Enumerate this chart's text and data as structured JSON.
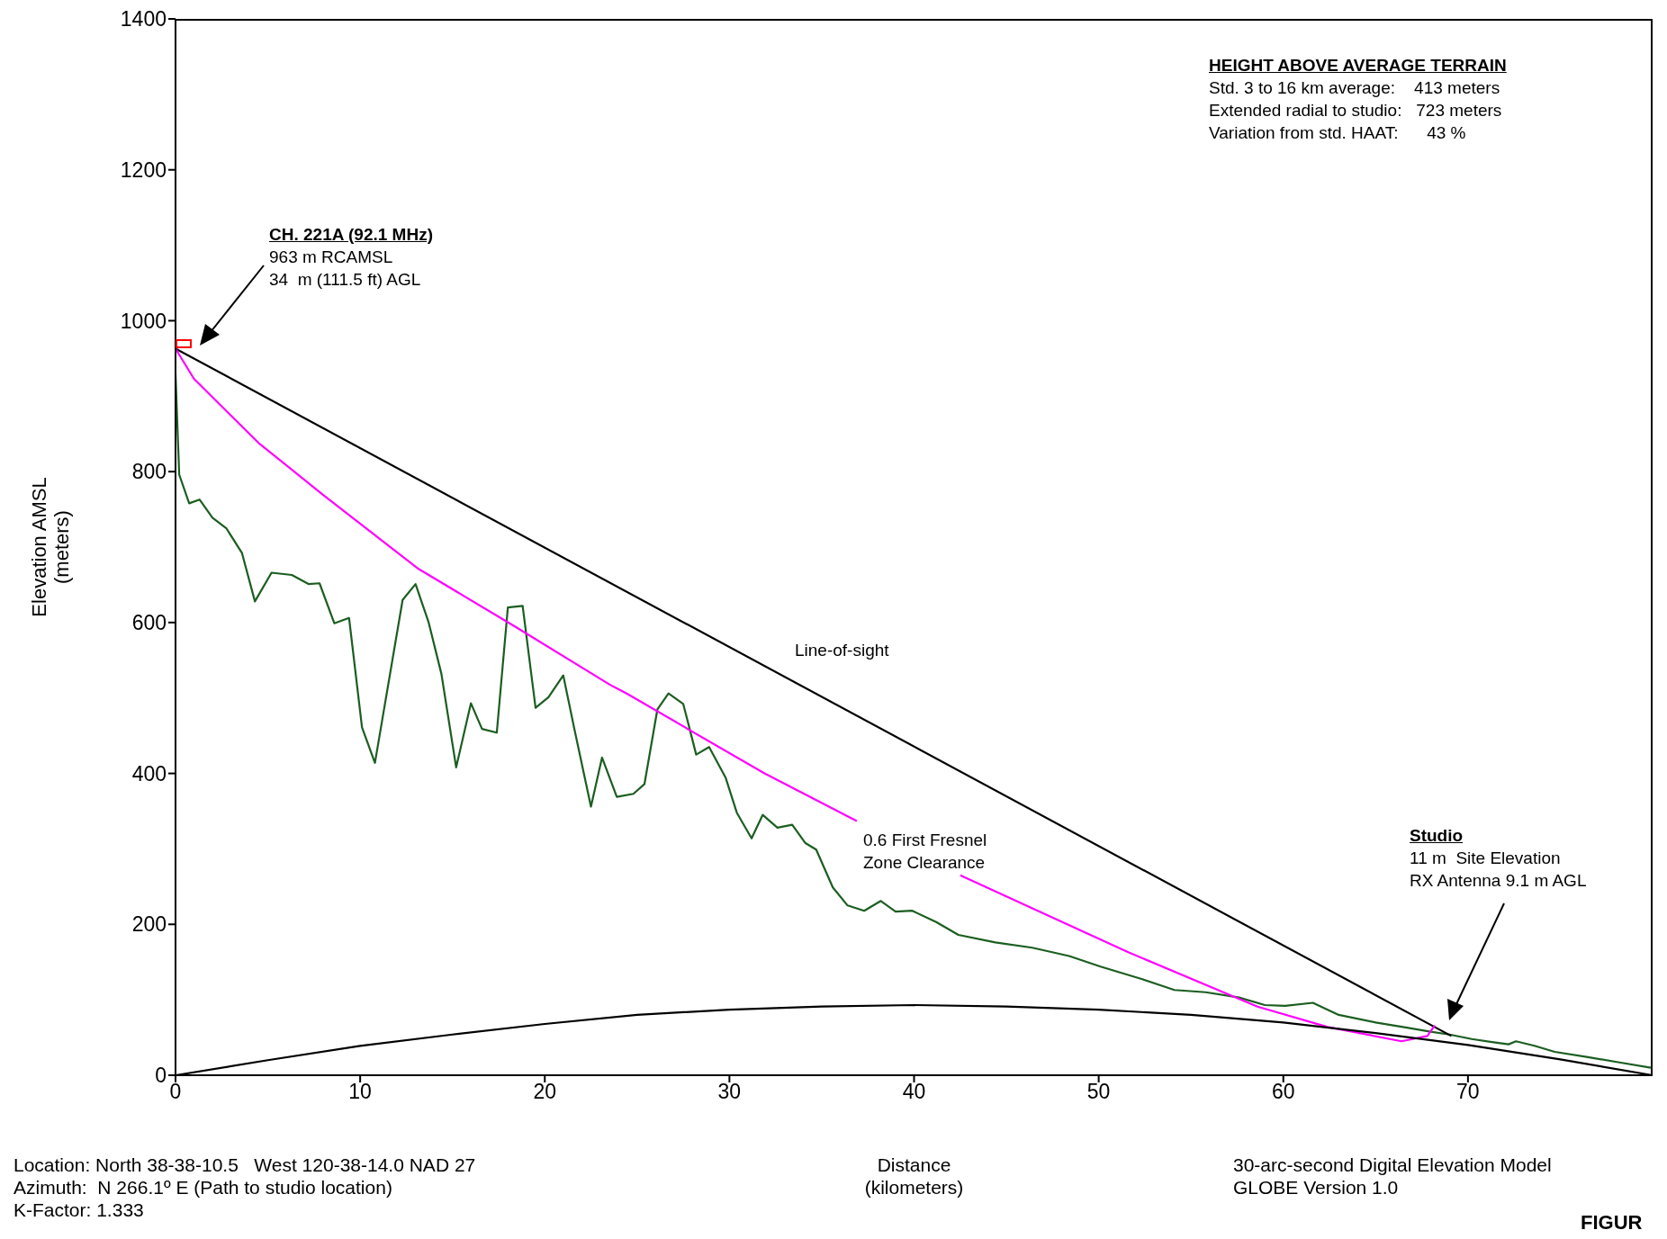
{
  "chart_data": {
    "type": "line",
    "xlabel": "Distance\n(kilometers)",
    "ylabel": "Elevation AMSL\n(meters)",
    "xlim": [
      0,
      80
    ],
    "xticks": [
      0,
      10,
      20,
      30,
      40,
      50,
      60,
      70
    ],
    "ylim": [
      0,
      1400
    ],
    "yticks": [
      0,
      200,
      400,
      600,
      800,
      1000,
      1200,
      1400
    ],
    "marker": "none",
    "series": [
      {
        "color": "#1b5e20",
        "x": [
          0,
          0.2,
          0.74,
          1.3,
          2.0,
          2.75,
          3.6,
          4.3,
          5.2,
          6.3,
          7.2,
          7.8,
          8.6,
          9.4,
          10.1,
          10.8,
          12.3,
          13.0,
          13.7,
          14.4,
          15.2,
          16.0,
          16.6,
          17.4,
          18.0,
          18.8,
          19.5,
          20.2,
          21.0,
          21.6,
          22.5,
          23.1,
          23.9,
          24.8,
          25.4,
          26.1,
          26.7,
          27.5,
          28.2,
          28.9,
          29.8,
          30.4,
          31.2,
          31.8,
          32.6,
          33.4,
          34.1,
          34.7,
          35.6,
          36.4,
          37.3,
          38.2,
          39.0,
          39.9,
          41.2,
          42.4,
          44.4,
          46.4,
          48.4,
          50.1,
          52.4,
          54.1,
          55.8,
          57.6,
          59.0,
          60.1,
          61.6,
          63.0,
          65.0,
          66.7,
          67.9,
          69.0,
          70.2,
          71.3,
          72.2,
          72.6,
          73.6,
          74.7,
          76.5,
          78.2,
          79.9
        ],
        "values": [
          929,
          796,
          758,
          763,
          739,
          725,
          692,
          628,
          666,
          663,
          651,
          652,
          599,
          606,
          461,
          414,
          630,
          651,
          601,
          532,
          408,
          493,
          459,
          454,
          620,
          622,
          487,
          501,
          530,
          459,
          356,
          421,
          369,
          373,
          386,
          485,
          506,
          492,
          425,
          435,
          394,
          348,
          314,
          345,
          328,
          332,
          308,
          299,
          249,
          225,
          218,
          231,
          217,
          218,
          203,
          186,
          176,
          169,
          158,
          144,
          127,
          113,
          110,
          103,
          93,
          92,
          96,
          80,
          70,
          63,
          58,
          54,
          48,
          44,
          41,
          45,
          39,
          31,
          24,
          17,
          10
        ]
      },
      {
        "name": "Line-of-sight",
        "color": "#000000",
        "x": [
          0,
          69.1
        ],
        "values": [
          963,
          52
        ]
      },
      {
        "name": "0.6 First Fresnel Zone Clearance",
        "color": "#ff00ff",
        "x": [
          0,
          1.0,
          4.5,
          8.0,
          13.1,
          18.3,
          23.5,
          24.5,
          31.9,
          36.9,
          39.5,
          42.5,
          51.6,
          58.6,
          62.4,
          66.4,
          67.8,
          68.2
        ],
        "values": [
          963,
          923,
          838,
          769,
          672,
          596,
          518,
          505,
          400,
          337,
          null,
          265,
          163,
          91,
          64,
          45,
          52,
          66
        ]
      },
      {
        "color": "#000000",
        "x": [
          0,
          5,
          10,
          15,
          20,
          25,
          30,
          35,
          40,
          45,
          50,
          55,
          60,
          65,
          70,
          75,
          80
        ],
        "values": [
          0,
          20,
          39,
          54,
          68,
          80,
          87,
          91,
          93,
          91,
          87,
          80,
          70,
          56,
          40,
          21,
          0
        ]
      }
    ],
    "annotations": [
      "HEIGHT ABOVE AVERAGE TERRAIN\nStd. 3 to 16 km average:    413 meters\nExtended radial to studio:   723 meters\nVariation from std. HAAT:      43 %",
      "CH. 221A (92.1 MHz)\n963 m RCAMSL\n34  m (111.5 ft) AGL",
      "Studio\n11 m  Site Elevation\nRX Antenna 9.1 m AGL",
      "Location: North 38-38-10.5   West 120-38-14.0 NAD 27\nAzimuth:  N 266.1º E (Path to studio location)\nK-Factor: 1.333",
      "30-arc-second Digital Elevation Model\nGLOBE Version 1.0",
      "FIGUR"
    ]
  }
}
